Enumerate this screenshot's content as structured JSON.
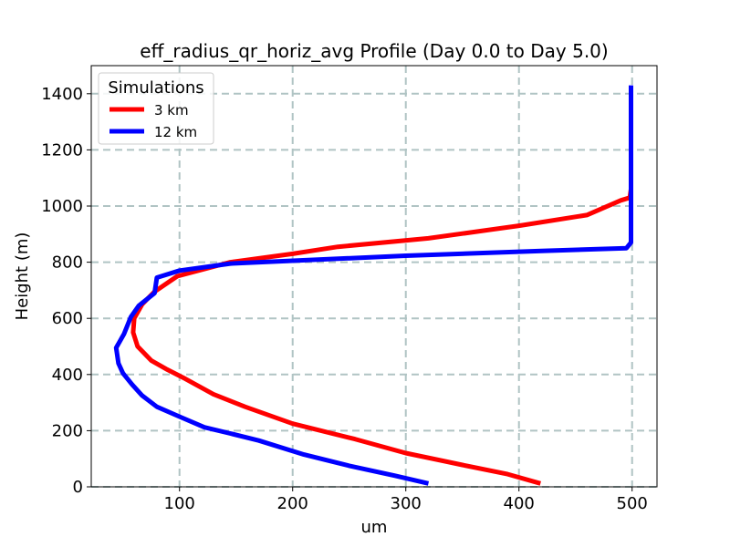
{
  "chart_data": {
    "type": "line",
    "title": "eff_radius_qr_horiz_avg Profile (Day 0.0 to Day 5.0)",
    "xlabel": "um",
    "ylabel": "Height (m)",
    "xlim": [
      22,
      522
    ],
    "ylim": [
      0,
      1500
    ],
    "xticks": [
      100,
      200,
      300,
      400,
      500
    ],
    "yticks": [
      0,
      200,
      400,
      600,
      800,
      1000,
      1200,
      1400
    ],
    "grid": true,
    "legend": {
      "title": "Simulations",
      "placement": "top-left"
    },
    "series": [
      {
        "name": "3 km",
        "color": "#ff0000",
        "points": [
          [
            419,
            12
          ],
          [
            390,
            45
          ],
          [
            350,
            78
          ],
          [
            300,
            120
          ],
          [
            255,
            170
          ],
          [
            200,
            225
          ],
          [
            158,
            285
          ],
          [
            130,
            330
          ],
          [
            105,
            385
          ],
          [
            88,
            420
          ],
          [
            75,
            450
          ],
          [
            63,
            500
          ],
          [
            59,
            550
          ],
          [
            60,
            600
          ],
          [
            67,
            650
          ],
          [
            78,
            695
          ],
          [
            98,
            750
          ],
          [
            145,
            800
          ],
          [
            200,
            830
          ],
          [
            240,
            855
          ],
          [
            320,
            885
          ],
          [
            400,
            930
          ],
          [
            460,
            968
          ],
          [
            490,
            1020
          ],
          [
            498,
            1030
          ],
          [
            499,
            1060
          ],
          [
            499,
            1100
          ]
        ]
      },
      {
        "name": "12 km",
        "color": "#0000ff",
        "points": [
          [
            320,
            12
          ],
          [
            290,
            40
          ],
          [
            250,
            75
          ],
          [
            210,
            115
          ],
          [
            170,
            165
          ],
          [
            145,
            190
          ],
          [
            122,
            212
          ],
          [
            100,
            250
          ],
          [
            80,
            285
          ],
          [
            67,
            325
          ],
          [
            58,
            365
          ],
          [
            50,
            405
          ],
          [
            46,
            440
          ],
          [
            44,
            495
          ],
          [
            51,
            545
          ],
          [
            57,
            605
          ],
          [
            64,
            645
          ],
          [
            78,
            690
          ],
          [
            80,
            745
          ],
          [
            100,
            770
          ],
          [
            145,
            795
          ],
          [
            300,
            823
          ],
          [
            420,
            840
          ],
          [
            495,
            850
          ],
          [
            499,
            870
          ],
          [
            499,
            905
          ],
          [
            499,
            1000
          ],
          [
            499,
            1100
          ],
          [
            499,
            1200
          ],
          [
            499,
            1300
          ],
          [
            499,
            1430
          ]
        ]
      }
    ]
  }
}
